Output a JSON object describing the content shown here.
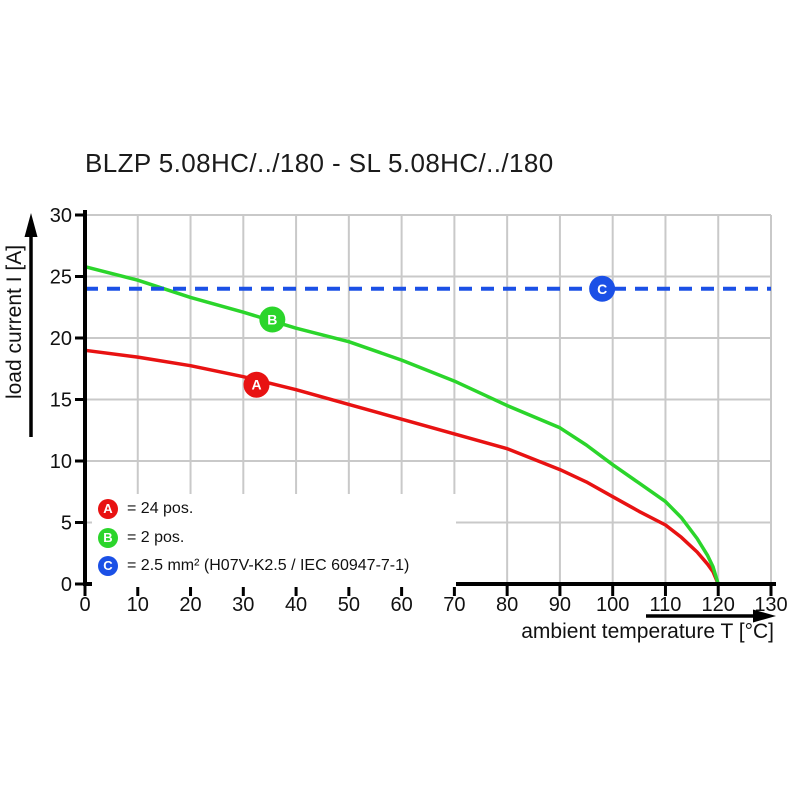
{
  "title": "BLZP 5.08HC/../180 - SL 5.08HC/../180",
  "legend": {
    "items": [
      {
        "letter": "A",
        "label": "= 24 pos.",
        "color": "#e81212"
      },
      {
        "letter": "B",
        "label": "= 2 pos.",
        "color": "#2bd52b"
      },
      {
        "letter": "C",
        "label": "= 2.5 mm² (H07V-K2.5 / IEC 60947-7-1)",
        "color": "#1b50e6"
      }
    ]
  },
  "chart_data": {
    "type": "line",
    "title": "BLZP 5.08HC/../180 - SL 5.08HC/../180",
    "xlabel": "ambient temperature T [°C]",
    "ylabel": "load current I [A]",
    "xlim": [
      0,
      130
    ],
    "ylim": [
      0,
      30
    ],
    "x_ticks": [
      0,
      10,
      20,
      30,
      40,
      50,
      60,
      70,
      80,
      90,
      100,
      110,
      120,
      130
    ],
    "y_ticks": [
      0,
      5,
      10,
      15,
      20,
      25,
      30
    ],
    "grid": true,
    "series": [
      {
        "name": "A = 24 pos.",
        "color": "#e81212",
        "style": "solid",
        "marker": {
          "letter": "A",
          "x": 32.5,
          "y": 16.2
        },
        "points": [
          [
            0,
            19.0
          ],
          [
            10,
            18.45
          ],
          [
            20,
            17.75
          ],
          [
            30,
            16.85
          ],
          [
            40,
            15.8
          ],
          [
            50,
            14.6
          ],
          [
            60,
            13.4
          ],
          [
            70,
            12.2
          ],
          [
            80,
            11.0
          ],
          [
            90,
            9.3
          ],
          [
            95,
            8.3
          ],
          [
            100,
            7.1
          ],
          [
            105,
            5.9
          ],
          [
            110,
            4.8
          ],
          [
            113,
            3.8
          ],
          [
            116,
            2.6
          ],
          [
            118,
            1.6
          ],
          [
            119,
            1.0
          ],
          [
            120,
            0
          ]
        ]
      },
      {
        "name": "B = 2 pos.",
        "color": "#2bd52b",
        "style": "solid",
        "marker": {
          "letter": "B",
          "x": 35.5,
          "y": 21.5
        },
        "points": [
          [
            0,
            25.8
          ],
          [
            10,
            24.7
          ],
          [
            20,
            23.3
          ],
          [
            30,
            22.1
          ],
          [
            40,
            20.8
          ],
          [
            50,
            19.7
          ],
          [
            60,
            18.2
          ],
          [
            70,
            16.5
          ],
          [
            80,
            14.5
          ],
          [
            90,
            12.7
          ],
          [
            95,
            11.3
          ],
          [
            100,
            9.7
          ],
          [
            105,
            8.2
          ],
          [
            110,
            6.7
          ],
          [
            113,
            5.4
          ],
          [
            116,
            3.7
          ],
          [
            118,
            2.3
          ],
          [
            119,
            1.4
          ],
          [
            120,
            0
          ]
        ]
      },
      {
        "name": "C = 2.5 mm² (H07V-K2.5 / IEC 60947-7-1)",
        "color": "#1b50e6",
        "style": "dashed",
        "marker": {
          "letter": "C",
          "x": 98,
          "y": 24
        },
        "points": [
          [
            0,
            24
          ],
          [
            130,
            24
          ]
        ]
      }
    ]
  }
}
